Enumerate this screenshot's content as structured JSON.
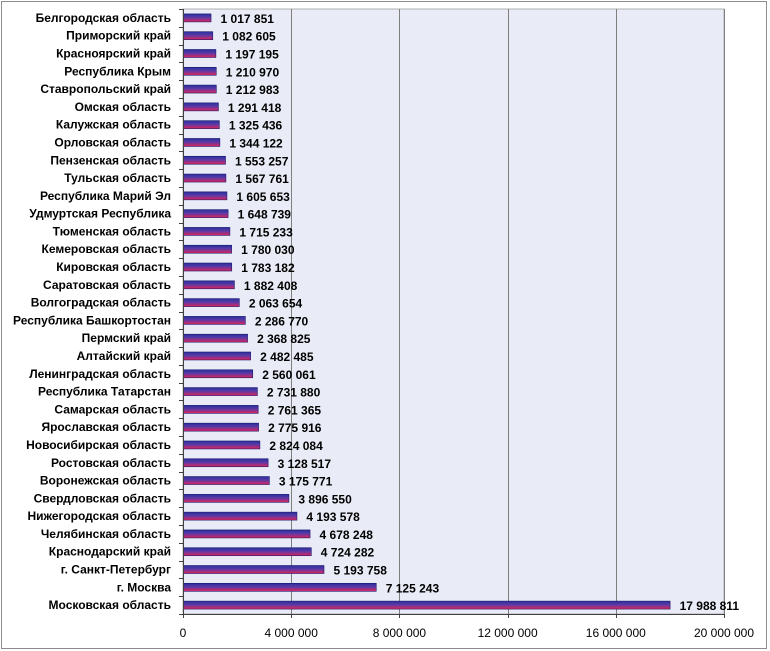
{
  "chart_data": {
    "type": "bar",
    "orientation": "horizontal",
    "categories": [
      "Белгородская область",
      "Приморский край",
      "Красноярский край",
      "Республика Крым",
      "Ставропольский край",
      "Омская область",
      "Калужская область",
      "Орловская область",
      "Пензенская область",
      "Тульская область",
      "Республика Марий Эл",
      "Удмуртская Республика",
      "Тюменская область",
      "Кемеровская область",
      "Кировская область",
      "Саратовская область",
      "Волгоградская область",
      "Республика Башкортостан",
      "Пермский край",
      "Алтайский край",
      "Ленинградская область",
      "Республика Татарстан",
      "Самарская область",
      "Ярославская область",
      "Новосибирская область",
      "Ростовская область",
      "Воронежская область",
      "Свердловская область",
      "Нижегородская область",
      "Челябинская область",
      "Краснодарский край",
      "г. Санкт-Петербург",
      "г. Москва",
      "Московская область"
    ],
    "values": [
      1017851,
      1082605,
      1197195,
      1210970,
      1212983,
      1291418,
      1325436,
      1344122,
      1553257,
      1567761,
      1605653,
      1648739,
      1715233,
      1780030,
      1783182,
      1882408,
      2063654,
      2286770,
      2368825,
      2482485,
      2560061,
      2731880,
      2761365,
      2775916,
      2824084,
      3128517,
      3175771,
      3896550,
      4193578,
      4678248,
      4724282,
      5193758,
      7125243,
      17988811
    ],
    "value_labels": [
      "1 017 851",
      "1 082 605",
      "1 197 195",
      "1 210 970",
      "1 212 983",
      "1 291 418",
      "1 325 436",
      "1 344 122",
      "1 553 257",
      "1 567 761",
      "1 605 653",
      "1 648 739",
      "1 715 233",
      "1 780 030",
      "1 783 182",
      "1 882 408",
      "2 063 654",
      "2 286 770",
      "2 368 825",
      "2 482 485",
      "2 560 061",
      "2 731 880",
      "2 761 365",
      "2 775 916",
      "2 824 084",
      "3 128 517",
      "3 175 771",
      "3 896 550",
      "4 193 578",
      "4 678 248",
      "4 724 282",
      "5 193 758",
      "7 125 243",
      "17 988 811"
    ],
    "xlim": [
      0,
      20000000
    ],
    "ticks": [
      0,
      4000000,
      8000000,
      12000000,
      16000000,
      20000000
    ],
    "tick_labels": [
      "0",
      "4 000 000",
      "8 000 000",
      "12 000 000",
      "16 000 000",
      "20 000 000"
    ],
    "title": "",
    "xlabel": "",
    "ylabel": "",
    "grid": "vertical",
    "legend": "none",
    "colors": {
      "plot_background": "#e9ecf7",
      "gridline": "#7f7f7f",
      "bar_top": "#2a2f9e",
      "bar_bottom": "#e0245a",
      "bar_edge": "#1a1a6e"
    }
  }
}
